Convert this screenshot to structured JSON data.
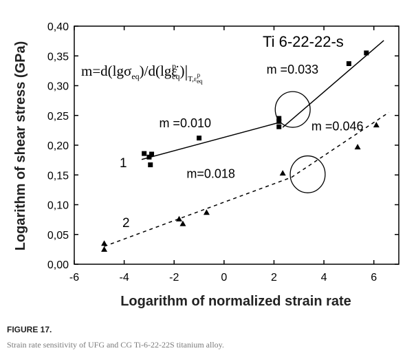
{
  "figure": {
    "label": "FIGURE 17.",
    "caption": "Strain rate sensitivity of UFG and CG Ti-6-22-22S titanium alloy."
  },
  "chart_data": {
    "type": "scatter",
    "title": "Ti 6-22-22-s",
    "xlabel": "Logarithm of normalized strain rate",
    "ylabel": "Logarithm of shear stress (GPa)",
    "xlim": [
      -6,
      7
    ],
    "ylim": [
      0,
      0.4
    ],
    "x_ticks": [
      "-6",
      "-4",
      "-2",
      "0",
      "2",
      "4",
      "6"
    ],
    "x_tick_values": [
      -6,
      -4,
      -2,
      0,
      2,
      4,
      6
    ],
    "y_ticks": [
      "0,00",
      "0,05",
      "0,10",
      "0,15",
      "0,20",
      "0,25",
      "0,30",
      "0,35",
      "0,40"
    ],
    "y_tick_values": [
      0,
      0.05,
      0.1,
      0.15,
      0.2,
      0.25,
      0.3,
      0.35,
      0.4
    ],
    "formula": {
      "main": "m=d(lgσ",
      "sub1": "eq",
      "mid": ")/d(lgε̇",
      "sup2": "p",
      "sub2": "eq",
      "close": ")",
      "eval_sub": "T,ε",
      "eval_sub_sup": "p",
      "eval_sub_sub": "eq"
    },
    "series": [
      {
        "name": "1",
        "marker": "square",
        "points": [
          [
            -3.2,
            0.186
          ],
          [
            -3.0,
            0.18
          ],
          [
            -2.9,
            0.185
          ],
          [
            -2.95,
            0.167
          ],
          [
            -1.0,
            0.212
          ],
          [
            2.2,
            0.245
          ],
          [
            2.2,
            0.24
          ],
          [
            2.2,
            0.231
          ],
          [
            5.0,
            0.337
          ],
          [
            5.7,
            0.355
          ]
        ],
        "fits": [
          {
            "x": [
              -3.3,
              2.2
            ],
            "y": [
              0.176,
              0.238
            ],
            "style": "solid"
          },
          {
            "x": [
              2.35,
              6.4
            ],
            "y": [
              0.23,
              0.376
            ],
            "style": "solid"
          }
        ]
      },
      {
        "name": "2",
        "marker": "triangle",
        "points": [
          [
            -4.8,
            0.035
          ],
          [
            -4.8,
            0.025
          ],
          [
            -1.8,
            0.076
          ],
          [
            -1.65,
            0.068
          ],
          [
            -0.7,
            0.087
          ],
          [
            2.35,
            0.153
          ],
          [
            5.35,
            0.197
          ],
          [
            6.1,
            0.234
          ]
        ],
        "fits": [
          {
            "x": [
              -4.8,
              2.7
            ],
            "y": [
              0.03,
              0.146
            ],
            "style": "dashed"
          },
          {
            "x": [
              2.7,
              6.6
            ],
            "y": [
              0.146,
              0.255
            ],
            "style": "dashed"
          }
        ]
      }
    ],
    "annotations": [
      {
        "text": "m =0.033",
        "x": 1.7,
        "y": 0.32
      },
      {
        "text": "m =0.010",
        "x": -2.6,
        "y": 0.23
      },
      {
        "text": "m =0.046",
        "x": 3.5,
        "y": 0.225
      },
      {
        "text": "m=0.018",
        "x": -1.5,
        "y": 0.145
      }
    ],
    "circles": [
      {
        "cx": 2.75,
        "cy": 0.26,
        "rx": 0.7,
        "ry": 0.03
      },
      {
        "cx": 3.35,
        "cy": 0.151,
        "rx": 0.7,
        "ry": 0.031
      }
    ]
  }
}
